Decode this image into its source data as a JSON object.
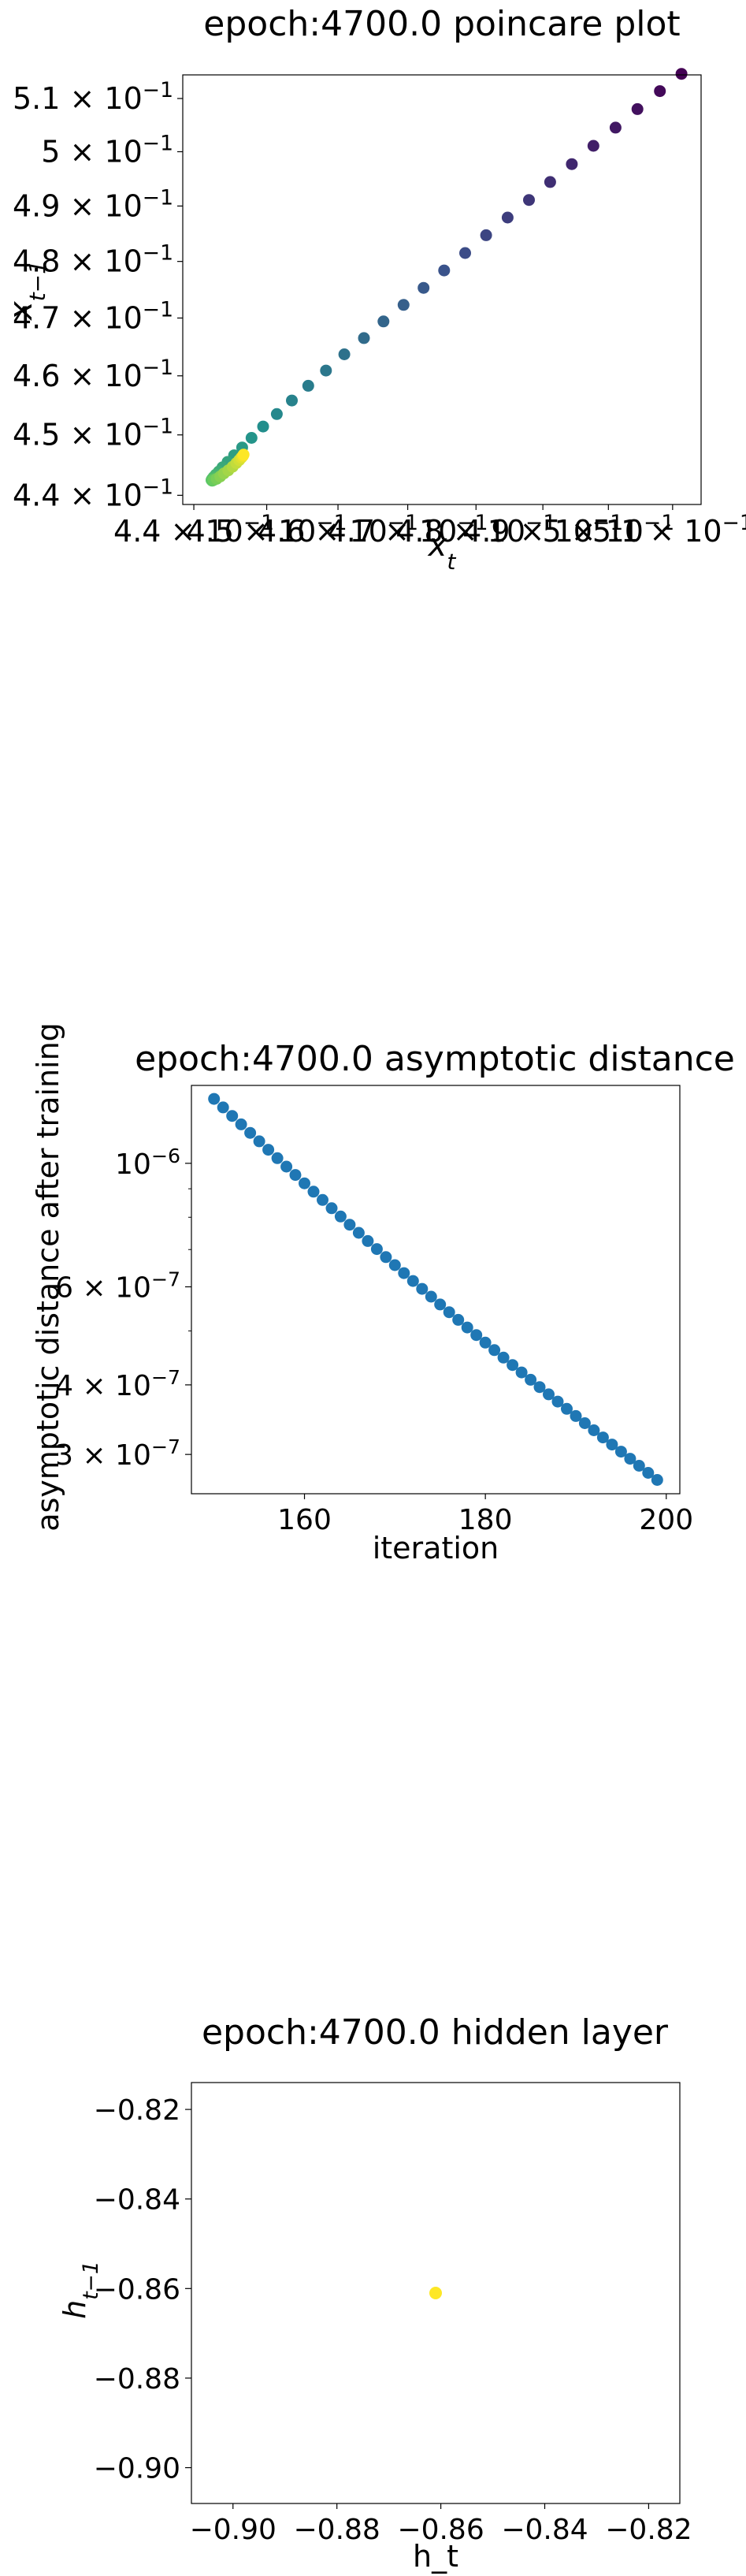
{
  "chart_data": [
    {
      "type": "scatter",
      "title": "epoch:4700.0 poincare plot",
      "xlabel": "x_t",
      "ylabel": "x_{t-1}",
      "yscale": "log",
      "xscale": "log",
      "xlim": [
        0.4385,
        0.5145
      ],
      "ylim": [
        0.4385,
        0.5145
      ],
      "grid": false,
      "colormap": "viridis",
      "x_tick_labels": [
        "4.4 × 10^-1",
        "4.5 × 10^-1",
        "4.6 × 10^-1",
        "4.7 × 10^-1",
        "4.8 × 10^-1",
        "4.9 × 10^-1",
        "5 × 10^-1",
        "5.1 × 10^-1"
      ],
      "x_tick_values": [
        0.44,
        0.45,
        0.46,
        0.47,
        0.48,
        0.49,
        0.5,
        0.51
      ],
      "y_tick_labels": [
        "4.4 × 10^-1",
        "4.5 × 10^-1",
        "4.6 × 10^-1",
        "4.7 × 10^-1",
        "4.8 × 10^-1",
        "4.9 × 10^-1",
        "5 × 10^-1",
        "5.1 × 10^-1"
      ],
      "y_tick_values": [
        0.44,
        0.45,
        0.46,
        0.47,
        0.48,
        0.49,
        0.5,
        0.51
      ],
      "points_x": [
        0.5114,
        0.508,
        0.5045,
        0.5011,
        0.4977,
        0.4944,
        0.4911,
        0.4879,
        0.4847,
        0.4815,
        0.4784,
        0.4753,
        0.4723,
        0.4694,
        0.4665,
        0.4637,
        0.4609,
        0.4583,
        0.4558,
        0.4535,
        0.4514,
        0.4495,
        0.4479,
        0.4466,
        0.4455,
        0.4446,
        0.4439,
        0.4434,
        0.443,
        0.4427,
        0.4425,
        0.4424,
        0.4425,
        0.4427,
        0.4431,
        0.4436,
        0.4441,
        0.4447,
        0.4453,
        0.4458,
        0.4462,
        0.4465,
        0.4467,
        0.4468
      ],
      "points_y": [
        0.5147,
        0.5114,
        0.508,
        0.5045,
        0.5011,
        0.4977,
        0.4944,
        0.4911,
        0.4879,
        0.4847,
        0.4815,
        0.4784,
        0.4753,
        0.4723,
        0.4694,
        0.4665,
        0.4637,
        0.4609,
        0.4583,
        0.4558,
        0.4535,
        0.4514,
        0.4495,
        0.4479,
        0.4466,
        0.4455,
        0.4446,
        0.4439,
        0.4434,
        0.443,
        0.4427,
        0.4425,
        0.4424,
        0.4425,
        0.4427,
        0.4431,
        0.4436,
        0.4441,
        0.4447,
        0.4453,
        0.4458,
        0.4462,
        0.4465,
        0.4467
      ]
    },
    {
      "type": "scatter",
      "title": "epoch:4700.0 asymptotic distance",
      "xlabel": "iteration",
      "ylabel": "asymptotic distance after training",
      "yscale": "log",
      "xlim": [
        147.5,
        201.5
      ],
      "ylim": [
        2.55e-07,
        1.38e-06
      ],
      "grid": false,
      "color": "#1f77b4",
      "x_tick_labels": [
        "160",
        "180",
        "200"
      ],
      "x_tick_values": [
        160,
        180,
        200
      ],
      "y_tick_labels": [
        "10^-6",
        "6 × 10^-7",
        "4 × 10^-7",
        "3 × 10^-7"
      ],
      "y_tick_values": [
        1e-06,
        6e-07,
        4e-07,
        3e-07
      ],
      "x_start": 150,
      "x_end": 199,
      "y_start": 1.305e-06,
      "y_end": 2.7e-07
    },
    {
      "type": "scatter",
      "title": "epoch:4700.0 hidden layer",
      "xlabel": "h_t",
      "ylabel": "h_{t-1}",
      "xlim": [
        -0.908,
        -0.814
      ],
      "ylim": [
        -0.908,
        -0.814
      ],
      "grid": false,
      "color": "#fde725",
      "x_tick_labels": [
        "−0.90",
        "−0.88",
        "−0.86",
        "−0.84",
        "−0.82"
      ],
      "x_tick_values": [
        -0.9,
        -0.88,
        -0.86,
        -0.84,
        -0.82
      ],
      "y_tick_labels": [
        "−0.82",
        "−0.84",
        "−0.86",
        "−0.88",
        "−0.90"
      ],
      "y_tick_values": [
        -0.82,
        -0.84,
        -0.86,
        -0.88,
        -0.9
      ],
      "points_x": [
        -0.861
      ],
      "points_y": [
        -0.861
      ]
    }
  ]
}
